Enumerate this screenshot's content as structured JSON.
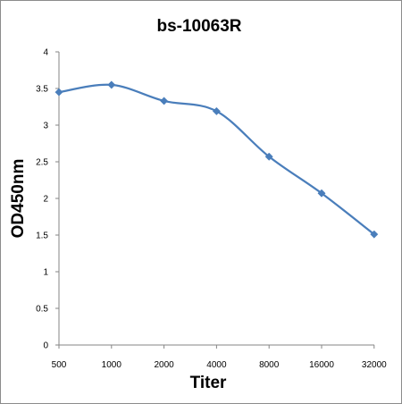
{
  "chart_data": {
    "type": "line",
    "title": "bs-10063R",
    "xlabel": "Titer",
    "ylabel": "OD450nm",
    "categories": [
      "500",
      "1000",
      "2000",
      "4000",
      "8000",
      "16000",
      "32000"
    ],
    "series": [
      {
        "values": [
          3.45,
          3.55,
          3.33,
          3.19,
          2.57,
          2.07,
          1.51
        ],
        "color": "#4a7ebb",
        "marker": "diamond"
      }
    ],
    "yticks": [
      "0",
      "0.5",
      "1",
      "1.5",
      "2",
      "2.5",
      "3",
      "3.5",
      "4"
    ],
    "ylim": [
      0,
      4
    ],
    "grid": false,
    "legend": "none"
  }
}
